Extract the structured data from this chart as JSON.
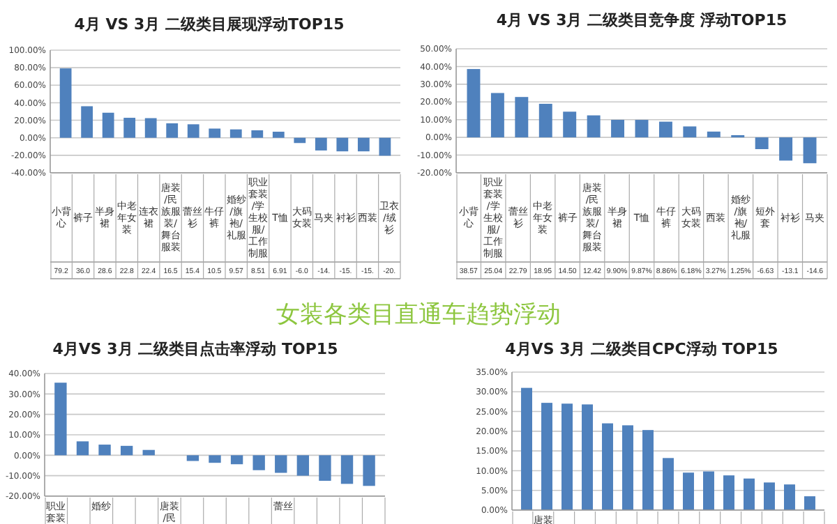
{
  "chart_data": [
    {
      "type": "bar",
      "title": "4月 VS 3月 二级类目展现浮动TOP15",
      "grid": "y",
      "categories": [
        "小背心",
        "裤子",
        "半身裙",
        "中老年女装",
        "连衣裙",
        "唐装/民族服装/舞台服装",
        "蕾丝衫",
        "牛仔裤",
        "婚纱/旗袍/礼服",
        "职业套装/学生校服/工作制服",
        "T恤",
        "大码女装",
        "马夹",
        "衬衫",
        "西装",
        "卫衣/绒衫"
      ],
      "series": [
        {
          "color": "#4f81bd",
          "values": [
            79.2,
            36.0,
            28.6,
            22.8,
            22.4,
            16.5,
            15.4,
            10.5,
            9.57,
            8.51,
            6.91,
            -6.0,
            -14.5,
            -15.5,
            -15.5,
            -20.5
          ],
          "value_labels": [
            "79.2",
            "36.0",
            "28.6",
            "22.8",
            "22.4",
            "16.5",
            "15.4",
            "10.5",
            "9.57",
            "8.51",
            "6.91",
            "-6.0",
            "-14.",
            "-15.",
            "-15.",
            "-20."
          ]
        }
      ],
      "ylim": [
        -40,
        100
      ],
      "yticks": [
        {
          "value": -40,
          "label": "-40.00%"
        },
        {
          "value": -20,
          "label": "-20.00%"
        },
        {
          "value": 0,
          "label": "0.00%"
        },
        {
          "value": 20,
          "label": "20.00%"
        },
        {
          "value": 40,
          "label": "40.00%"
        },
        {
          "value": 60,
          "label": "60.00%"
        },
        {
          "value": 80,
          "label": "80.00%"
        },
        {
          "value": 100,
          "label": "100.00%"
        }
      ]
    },
    {
      "type": "bar",
      "title": "4月 VS 3月 二级类目竞争度 浮动TOP15",
      "grid": "y",
      "categories": [
        "小背心",
        "职业套装/学生校服/工作制服",
        "蕾丝衫",
        "中老年女装",
        "裤子",
        "唐装/民族服装/舞台服装",
        "半身裙",
        "T恤",
        "牛仔裤",
        "大码女装",
        "西装",
        "婚纱/旗袍/礼服",
        "短外套",
        "衬衫",
        "马夹"
      ],
      "series": [
        {
          "color": "#4f81bd",
          "values": [
            38.57,
            25.04,
            22.79,
            18.95,
            14.5,
            12.42,
            9.9,
            9.87,
            8.86,
            6.18,
            3.27,
            1.25,
            -6.63,
            -13.1,
            -14.6
          ],
          "value_labels": [
            "38.57",
            "25.04",
            "22.79",
            "18.95",
            "14.50",
            "12.42",
            "9.90%",
            "9.87%",
            "8.86%",
            "6.18%",
            "3.27%",
            "1.25%",
            "-6.63",
            "-13.1",
            "-14.6"
          ]
        }
      ],
      "ylim": [
        -20,
        50
      ],
      "yticks": [
        {
          "value": -20,
          "label": "-20.00%"
        },
        {
          "value": -10,
          "label": "-10.00%"
        },
        {
          "value": 0,
          "label": "0.00%"
        },
        {
          "value": 10,
          "label": "10.00%"
        },
        {
          "value": 20,
          "label": "20.00%"
        },
        {
          "value": 30,
          "label": "30.00%"
        },
        {
          "value": 40,
          "label": "40.00%"
        },
        {
          "value": 50,
          "label": "50.00%"
        }
      ]
    },
    {
      "type": "other",
      "title": "女装各类目直通车趋势浮动"
    },
    {
      "type": "bar",
      "title": "4月VS 3月 二级类目点击率浮动 TOP15",
      "grid": "y",
      "categories": [
        "职业套装",
        null,
        "婚纱",
        null,
        null,
        "唐装/民",
        null,
        null,
        null,
        null,
        "蕾丝",
        null,
        null,
        null,
        null
      ],
      "series": [
        {
          "color": "#4f81bd",
          "values": [
            35.5,
            6.8,
            5.2,
            4.6,
            2.6,
            0,
            -2.8,
            -3.7,
            -4.4,
            -7.3,
            -8.6,
            -10,
            -12.5,
            -14,
            -15
          ]
        }
      ],
      "ylim": [
        -20,
        40
      ],
      "yticks": [
        {
          "value": -20,
          "label": "-20.00%"
        },
        {
          "value": -10,
          "label": "-10.00%"
        },
        {
          "value": 0,
          "label": "0.00%"
        },
        {
          "value": 10,
          "label": "10.00%"
        },
        {
          "value": 20,
          "label": "20.00%"
        },
        {
          "value": 30,
          "label": "30.00%"
        },
        {
          "value": 40,
          "label": "40.00%"
        }
      ]
    },
    {
      "type": "bar",
      "title": "4月VS 3月 二级类目CPC浮动 TOP15",
      "grid": "y",
      "categories": [
        null,
        "唐装",
        null,
        null,
        null,
        null,
        null,
        null,
        null,
        null,
        null,
        null,
        null,
        null,
        null
      ],
      "series": [
        {
          "color": "#4f81bd",
          "values": [
            31,
            27.2,
            27,
            26.8,
            22,
            21.5,
            20.3,
            13.2,
            9.5,
            9.8,
            8.8,
            8,
            7,
            6.5,
            3.5
          ]
        }
      ],
      "ylim": [
        0,
        35
      ],
      "yticks": [
        {
          "value": 0,
          "label": "0.00%"
        },
        {
          "value": 5,
          "label": "5.00%"
        },
        {
          "value": 10,
          "label": "10.00%"
        },
        {
          "value": 15,
          "label": "15.00%"
        },
        {
          "value": 20,
          "label": "20.00%"
        },
        {
          "value": 25,
          "label": "25.00%"
        },
        {
          "value": 30,
          "label": "30.00%"
        },
        {
          "value": 35,
          "label": "35.00%"
        }
      ]
    }
  ]
}
